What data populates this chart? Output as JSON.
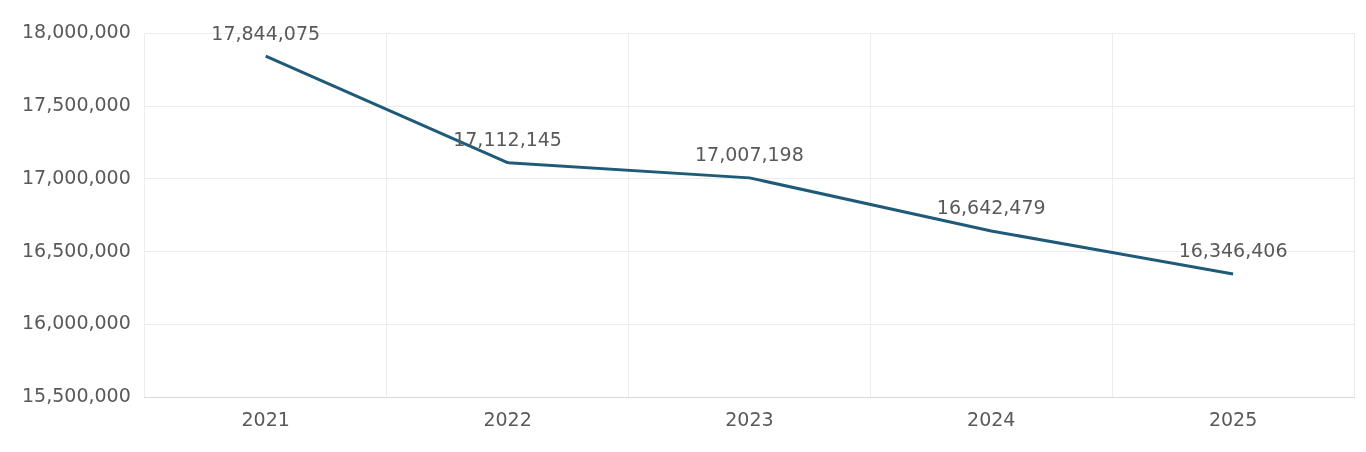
{
  "chart_data": {
    "type": "line",
    "categories": [
      "2021",
      "2022",
      "2023",
      "2024",
      "2025"
    ],
    "series": [
      {
        "color": "#1f5b78",
        "values": [
          17844075,
          17112145,
          17007198,
          16642479,
          16346406
        ],
        "value_labels": [
          "17,844,075",
          "17,112,145",
          "17,007,198",
          "16,642,479",
          "16,346,406"
        ]
      }
    ],
    "ylim": [
      15500000,
      18000000
    ],
    "yticks": [
      {
        "value": 15500000,
        "label": "15,500,000"
      },
      {
        "value": 16000000,
        "label": "16,000,000"
      },
      {
        "value": 16500000,
        "label": "16,500,000"
      },
      {
        "value": 17000000,
        "label": "17,000,000"
      },
      {
        "value": 17500000,
        "label": "17,500,000"
      },
      {
        "value": 18000000,
        "label": "18,000,000"
      }
    ],
    "grid": true,
    "legend": false,
    "marker": "none",
    "line_style": "solid"
  }
}
